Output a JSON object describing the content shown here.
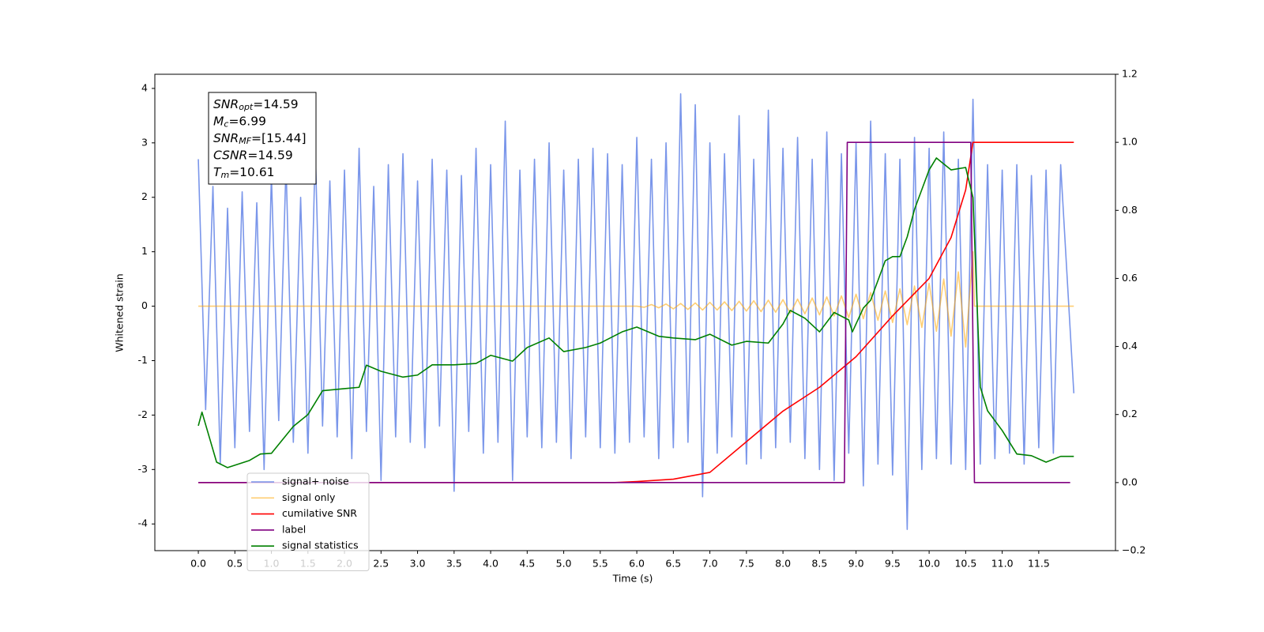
{
  "chart_data": {
    "type": "line",
    "xlabel": "Time (s)",
    "ylabel": "Whitened strain",
    "xlim": [
      -0.595,
      12.55
    ],
    "ylim": [
      -4.49,
      4.26
    ],
    "y2lim": [
      -0.2,
      1.2
    ],
    "xticks": [
      {
        "value": 0,
        "label": "0.0"
      },
      {
        "value": 0.5,
        "label": "0.5"
      },
      {
        "value": 1,
        "label": "1.0"
      },
      {
        "value": 1.5,
        "label": "1.5"
      },
      {
        "value": 2,
        "label": "2.0"
      },
      {
        "value": 2.5,
        "label": "2.5"
      },
      {
        "value": 3,
        "label": "3.0"
      },
      {
        "value": 3.5,
        "label": "3.5"
      },
      {
        "value": 4,
        "label": "4.0"
      },
      {
        "value": 4.5,
        "label": "4.5"
      },
      {
        "value": 5,
        "label": "5.0"
      },
      {
        "value": 5.5,
        "label": "5.5"
      },
      {
        "value": 6,
        "label": "6.0"
      },
      {
        "value": 6.5,
        "label": "6.5"
      },
      {
        "value": 7,
        "label": "7.0"
      },
      {
        "value": 7.5,
        "label": "7.5"
      },
      {
        "value": 8,
        "label": "8.0"
      },
      {
        "value": 8.5,
        "label": "8.5"
      },
      {
        "value": 9,
        "label": "9.0"
      },
      {
        "value": 9.5,
        "label": "9.5"
      },
      {
        "value": 10,
        "label": "10.0"
      },
      {
        "value": 10.5,
        "label": "10.5"
      },
      {
        "value": 11,
        "label": "11.0"
      },
      {
        "value": 11.5,
        "label": "11.5"
      }
    ],
    "yticks": [
      -4,
      -3,
      -2,
      -1,
      0,
      1,
      2,
      3,
      4
    ],
    "y2ticks": [
      {
        "value": -0.2,
        "label": "−0.2"
      },
      {
        "value": 0,
        "label": "0.0"
      },
      {
        "value": 0.2,
        "label": "0.2"
      },
      {
        "value": 0.4,
        "label": "0.4"
      },
      {
        "value": 0.6,
        "label": "0.6"
      },
      {
        "value": 0.8,
        "label": "0.8"
      },
      {
        "value": 1,
        "label": "1.0"
      },
      {
        "value": 1.2,
        "label": "1.2"
      }
    ],
    "legend": "lower left",
    "annotations": [
      {
        "symbol": "SNR",
        "sub": "opt",
        "text": "=14.59"
      },
      {
        "symbol": "M",
        "sub": "c",
        "text": "=6.99"
      },
      {
        "symbol": "SNR",
        "sub": "MF",
        "text": "=[15.44]"
      },
      {
        "symbol": "CSNR",
        "sub": "",
        "text": "=14.59"
      },
      {
        "symbol": "T",
        "sub": "m",
        "text": "=10.61"
      }
    ],
    "series": [
      {
        "name": "signal+ noise",
        "color": "#4169e1",
        "alpha": 0.7,
        "axis": "y",
        "x": [
          0,
          0.1,
          0.2,
          0.3,
          0.4,
          0.5,
          0.6,
          0.7,
          0.8,
          0.9,
          1,
          1.1,
          1.2,
          1.3,
          1.4,
          1.5,
          1.6,
          1.7,
          1.8,
          1.9,
          2,
          2.1,
          2.2,
          2.3,
          2.4,
          2.5,
          2.6,
          2.7,
          2.8,
          2.9,
          3,
          3.1,
          3.2,
          3.3,
          3.4,
          3.5,
          3.6,
          3.7,
          3.8,
          3.9,
          4,
          4.1,
          4.2,
          4.3,
          4.4,
          4.5,
          4.6,
          4.7,
          4.8,
          4.9,
          5,
          5.1,
          5.2,
          5.3,
          5.4,
          5.5,
          5.6,
          5.7,
          5.8,
          5.9,
          6,
          6.1,
          6.2,
          6.3,
          6.4,
          6.5,
          6.6,
          6.7,
          6.8,
          6.9,
          7,
          7.1,
          7.2,
          7.3,
          7.4,
          7.5,
          7.6,
          7.7,
          7.8,
          7.9,
          8,
          8.1,
          8.2,
          8.3,
          8.4,
          8.5,
          8.6,
          8.7,
          8.8,
          8.9,
          9,
          9.1,
          9.2,
          9.3,
          9.4,
          9.5,
          9.6,
          9.7,
          9.8,
          9.9,
          10,
          10.1,
          10.2,
          10.3,
          10.4,
          10.5,
          10.6,
          10.7,
          10.8,
          10.9,
          11,
          11.1,
          11.2,
          11.3,
          11.4,
          11.5,
          11.6,
          11.7,
          11.8,
          11.98
        ],
        "values": [
          2.7,
          -1.9,
          2.2,
          -2.9,
          1.8,
          -2.6,
          2.1,
          -2.3,
          1.9,
          -3.0,
          2.4,
          -2.1,
          2.6,
          -2.5,
          2.0,
          -2.7,
          2.9,
          -2.2,
          2.3,
          -2.4,
          2.5,
          -2.8,
          2.9,
          -2.3,
          2.2,
          -3.2,
          2.6,
          -2.4,
          2.8,
          -2.5,
          2.3,
          -2.6,
          2.7,
          -2.2,
          2.5,
          -3.4,
          2.4,
          -2.3,
          2.9,
          -2.7,
          2.6,
          -2.5,
          3.4,
          -3.2,
          2.5,
          -2.4,
          2.7,
          -2.6,
          3.0,
          -2.5,
          2.5,
          -2.8,
          2.7,
          -2.4,
          2.9,
          -2.6,
          2.8,
          -2.7,
          2.6,
          -2.5,
          3.1,
          -2.4,
          2.7,
          -2.8,
          3.0,
          -2.6,
          3.9,
          -2.5,
          3.7,
          -3.5,
          3.0,
          -2.7,
          2.8,
          -2.4,
          3.5,
          -2.9,
          2.7,
          -2.8,
          3.6,
          -2.6,
          2.9,
          -2.5,
          3.1,
          -2.8,
          2.7,
          -3.0,
          3.2,
          -3.2,
          2.8,
          -2.7,
          3.0,
          -3.3,
          3.4,
          -2.9,
          2.8,
          -3.1,
          2.7,
          -4.1,
          3.1,
          -3.0,
          2.9,
          -2.8,
          3.2,
          -2.9,
          2.7,
          -3.0,
          3.8,
          -2.9,
          2.6,
          -2.8,
          2.5,
          -2.7,
          2.6,
          -2.9,
          2.4,
          -2.6,
          2.5,
          -2.7,
          2.6,
          -1.6
        ]
      },
      {
        "name": "signal only",
        "color": "#ffa500",
        "alpha": 0.55,
        "axis": "y",
        "x": [
          0,
          6,
          6.1,
          6.2,
          6.3,
          6.4,
          6.5,
          6.6,
          6.7,
          6.8,
          6.9,
          7,
          7.1,
          7.2,
          7.3,
          7.4,
          7.5,
          7.6,
          7.7,
          7.8,
          7.9,
          8,
          8.1,
          8.2,
          8.3,
          8.4,
          8.5,
          8.6,
          8.7,
          8.8,
          8.9,
          9,
          9.1,
          9.2,
          9.3,
          9.4,
          9.5,
          9.6,
          9.7,
          9.8,
          9.9,
          10,
          10.1,
          10.2,
          10.3,
          10.4,
          10.5,
          10.6,
          10.62,
          11.98
        ],
        "values": [
          0,
          0,
          -0.02,
          0.03,
          -0.03,
          0.04,
          -0.05,
          0.05,
          -0.06,
          0.06,
          -0.07,
          0.07,
          -0.07,
          0.08,
          -0.08,
          0.09,
          -0.09,
          0.1,
          -0.1,
          0.11,
          -0.11,
          0.12,
          -0.13,
          0.13,
          -0.14,
          0.15,
          -0.16,
          0.17,
          -0.18,
          0.19,
          -0.21,
          0.22,
          -0.23,
          0.25,
          -0.26,
          0.28,
          -0.3,
          0.32,
          -0.34,
          0.37,
          -0.39,
          0.42,
          -0.46,
          0.5,
          -0.55,
          0.63,
          -0.75,
          1.0,
          0,
          0
        ]
      },
      {
        "name": "cumilative SNR",
        "color": "#ff0000",
        "alpha": 1,
        "axis": "y2",
        "x": [
          0,
          5.7,
          6,
          6.5,
          7,
          7.5,
          8,
          8.5,
          9,
          9.5,
          10,
          10.3,
          10.5,
          10.6,
          11.98
        ],
        "values": [
          0,
          0,
          0.003,
          0.01,
          0.03,
          0.12,
          0.21,
          0.28,
          0.37,
          0.49,
          0.6,
          0.72,
          0.86,
          1.0,
          1.0
        ]
      },
      {
        "name": "label",
        "color": "#800080",
        "alpha": 1,
        "axis": "y2",
        "x": [
          0,
          8.84,
          8.88,
          10.57,
          10.62,
          11.93
        ],
        "values": [
          0,
          0,
          1,
          1,
          0,
          0
        ]
      },
      {
        "name": "signal statistics",
        "color": "#008000",
        "alpha": 1,
        "axis": "y2",
        "x": [
          0,
          0.05,
          0.25,
          0.4,
          0.7,
          0.85,
          1,
          1.3,
          1.5,
          1.7,
          2,
          2.2,
          2.3,
          2.5,
          2.8,
          3,
          3.2,
          3.5,
          3.8,
          4,
          4.3,
          4.5,
          4.8,
          5,
          5.3,
          5.5,
          5.8,
          6,
          6.3,
          6.5,
          6.8,
          7,
          7.3,
          7.5,
          7.8,
          8,
          8.1,
          8.3,
          8.5,
          8.7,
          8.9,
          8.95,
          9.1,
          9.2,
          9.3,
          9.4,
          9.5,
          9.6,
          9.7,
          9.8,
          9.9,
          10,
          10.1,
          10.3,
          10.5,
          10.6,
          10.7,
          10.8,
          11,
          11.2,
          11.4,
          11.6,
          11.8,
          11.98
        ],
        "values": [
          0.167,
          0.207,
          0.06,
          0.044,
          0.065,
          0.084,
          0.086,
          0.165,
          0.2,
          0.27,
          0.276,
          0.28,
          0.345,
          0.327,
          0.31,
          0.316,
          0.346,
          0.346,
          0.35,
          0.374,
          0.357,
          0.397,
          0.425,
          0.385,
          0.397,
          0.41,
          0.443,
          0.457,
          0.43,
          0.425,
          0.42,
          0.436,
          0.404,
          0.415,
          0.41,
          0.466,
          0.506,
          0.483,
          0.443,
          0.5,
          0.478,
          0.443,
          0.513,
          0.536,
          0.594,
          0.652,
          0.664,
          0.664,
          0.722,
          0.803,
          0.861,
          0.919,
          0.954,
          0.919,
          0.926,
          0.838,
          0.281,
          0.211,
          0.153,
          0.084,
          0.079,
          0.06,
          0.077,
          0.077
        ]
      }
    ]
  }
}
